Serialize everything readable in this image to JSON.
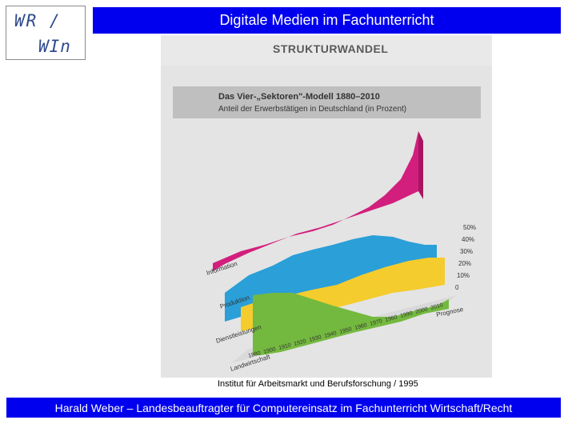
{
  "logo": {
    "line1": "WR /",
    "line2": "WIn"
  },
  "header": {
    "title": "Digitale Medien im Fachunterricht"
  },
  "figure": {
    "heading": "STRUKTURWANDEL",
    "chart_title": "Das Vier-„Sektoren\"-Modell 1880–2010",
    "chart_subtitle": "Anteil der Erwerbstätigen in Deutschland (in Prozent)",
    "sectors": [
      "Information",
      "Produktion",
      "Dienstleistungen",
      "Landwirtschaft"
    ],
    "years": [
      "1880",
      "1900",
      "1910",
      "1920",
      "1930",
      "1940",
      "1950",
      "1960",
      "1970",
      "1980",
      "1990",
      "2000",
      "2010"
    ],
    "years_label": "Prognose",
    "percent_ticks": [
      "0",
      "10%",
      "20%",
      "30%",
      "40%",
      "50%"
    ],
    "colors": {
      "information": "#d21f7d",
      "produktion": "#2a9fd8",
      "dienstleistungen": "#f4cc2e",
      "landwirtschaft": "#74b93f"
    }
  },
  "caption": "Institut für Arbeitsmarkt und Berufsforschung / 1995",
  "footer": {
    "text": "Harald Weber – Landesbeauftragter für Computereinsatz im Fachunterricht Wirtschaft/Recht"
  }
}
